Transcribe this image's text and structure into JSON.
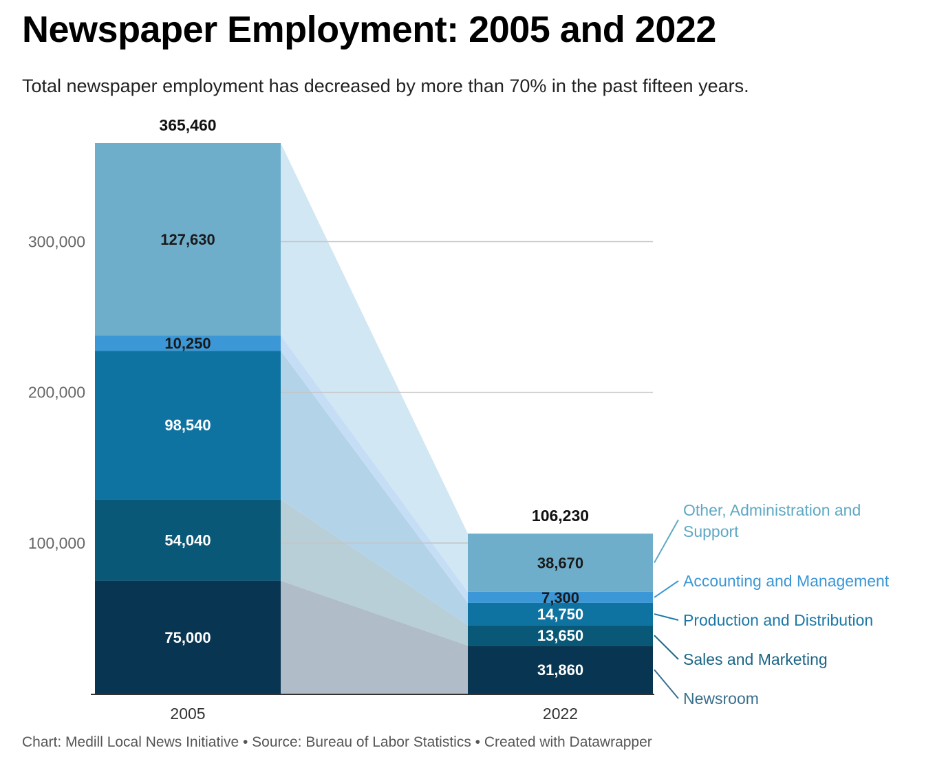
{
  "chart_data": {
    "type": "bar",
    "stacked": true,
    "title": "Newspaper Employment: 2005 and 2022",
    "subtitle": "Total newspaper employment has decreased by more than 70% in the past fifteen years.",
    "footer": "Chart: Medill Local News Initiative • Source: Bureau of Labor Statistics • Created with Datawrapper",
    "categories": [
      "2005",
      "2022"
    ],
    "totals": [
      365460,
      106230
    ],
    "total_labels": [
      "365,460",
      "106,230"
    ],
    "ylim": [
      0,
      365460
    ],
    "yticks": [
      100000,
      200000,
      300000
    ],
    "ytick_labels": [
      "100,000",
      "200,000",
      "300,000"
    ],
    "grid": true,
    "legend_position": "right",
    "series": [
      {
        "name": "Newsroom",
        "color": "#083551",
        "label_color": "#ffffff",
        "legend_color": "#3a6f8d",
        "values": [
          75000,
          31860
        ],
        "value_labels": [
          "75,000",
          "31,860"
        ]
      },
      {
        "name": "Sales and Marketing",
        "color": "#0a5877",
        "label_color": "#ffffff",
        "legend_color": "#1a6585",
        "values": [
          54040,
          13650
        ],
        "value_labels": [
          "54,040",
          "13,650"
        ]
      },
      {
        "name": "Production and Distribution",
        "color": "#0f73a1",
        "label_color": "#ffffff",
        "legend_color": "#1b77a6",
        "values": [
          98540,
          14750
        ],
        "value_labels": [
          "98,540",
          "14,750"
        ]
      },
      {
        "name": "Accounting and Management",
        "color": "#3b97d6",
        "label_color": "#1a1a1a",
        "legend_color": "#3b97d6",
        "values": [
          10250,
          7300
        ],
        "value_labels": [
          "10,250",
          "7,300"
        ]
      },
      {
        "name": "Other, Administration and Support",
        "color": "#6faecb",
        "label_color": "#1a1a1a",
        "legend_color": "#5ea8c4",
        "values": [
          127630,
          38670
        ],
        "value_labels": [
          "127,630",
          "38,670"
        ]
      }
    ],
    "connector_colors": [
      "#b0bcc7",
      "#b8cfd8",
      "#b3d3e9",
      "#c6def5",
      "#d1e7f3"
    ]
  }
}
